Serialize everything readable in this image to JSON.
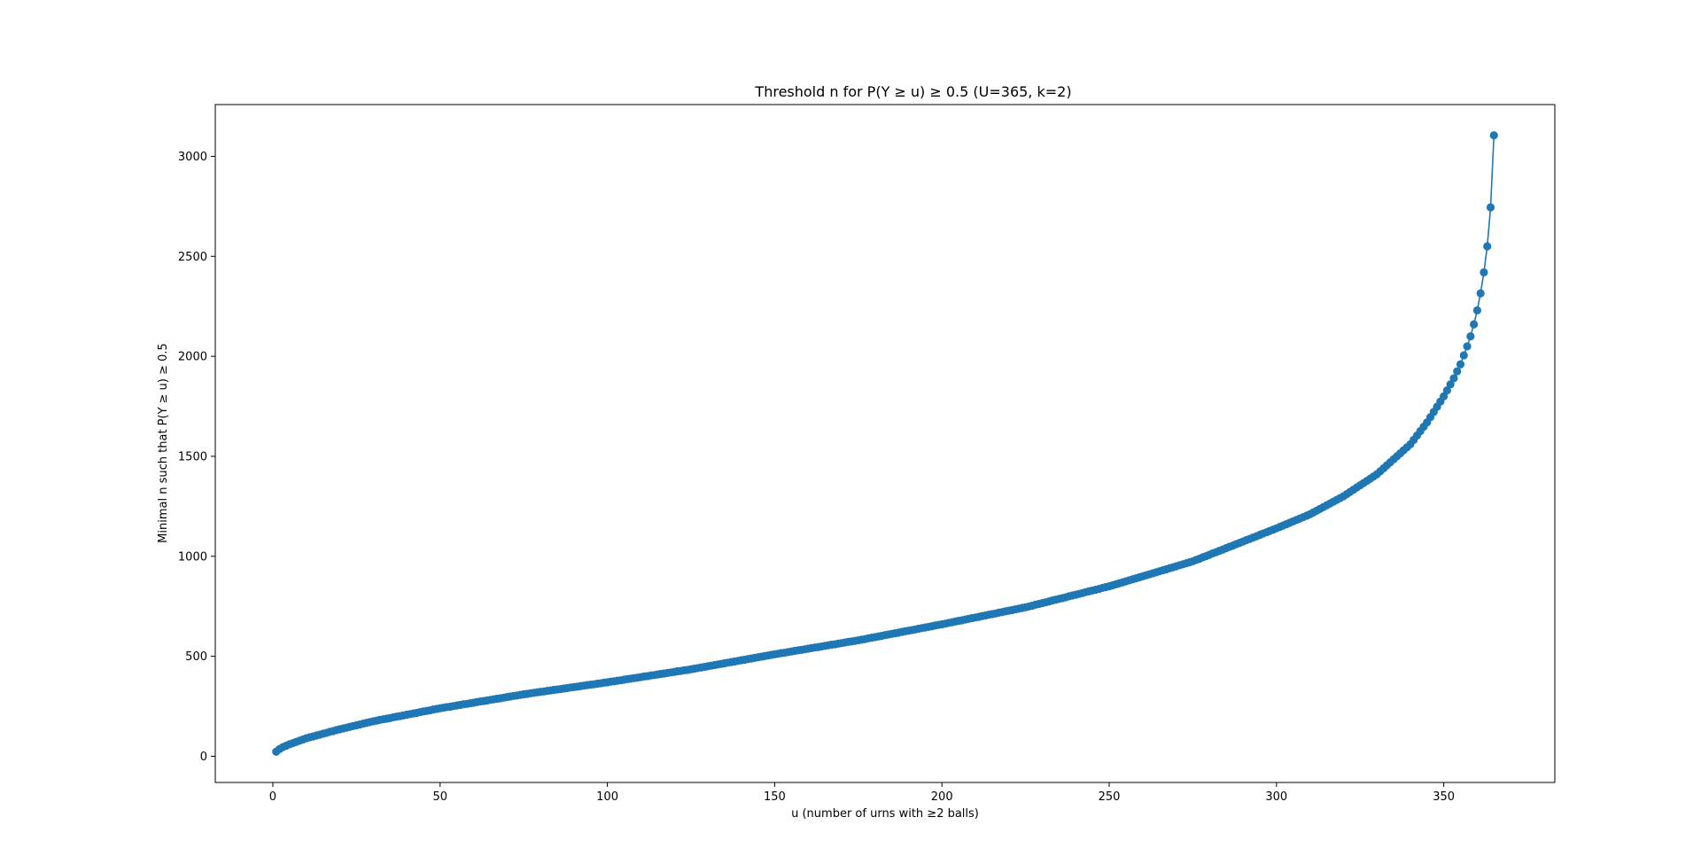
{
  "chart_data": {
    "type": "line",
    "title": "Threshold n for P(Y ≥ u) ≥ 0.5 (U=365, k=2)",
    "xlabel": "u (number of urns with ≥2 balls)",
    "ylabel": "Minimal n such that P(Y ≥ u) ≥ 0.5",
    "xlim": [
      -17.2,
      383.2
    ],
    "ylim": [
      -131,
      3259
    ],
    "xticks": [
      0,
      50,
      100,
      150,
      200,
      250,
      300,
      350
    ],
    "yticks": [
      0,
      500,
      1000,
      1500,
      2000,
      2500,
      3000
    ],
    "grid": false,
    "marker": "circle",
    "color": "#1f77b4",
    "series": [
      {
        "name": "",
        "anchors": [
          [
            1,
            23
          ],
          [
            2,
            36
          ],
          [
            3,
            46
          ],
          [
            5,
            60
          ],
          [
            10,
            90
          ],
          [
            20,
            135
          ],
          [
            30,
            175
          ],
          [
            50,
            240
          ],
          [
            75,
            310
          ],
          [
            100,
            370
          ],
          [
            125,
            435
          ],
          [
            150,
            510
          ],
          [
            175,
            580
          ],
          [
            200,
            660
          ],
          [
            225,
            745
          ],
          [
            250,
            850
          ],
          [
            275,
            975
          ],
          [
            300,
            1140
          ],
          [
            310,
            1210
          ],
          [
            320,
            1300
          ],
          [
            330,
            1410
          ],
          [
            340,
            1560
          ],
          [
            345,
            1670
          ],
          [
            350,
            1800
          ],
          [
            353,
            1890
          ],
          [
            355,
            1960
          ],
          [
            357,
            2050
          ],
          [
            358,
            2100
          ],
          [
            359,
            2160
          ],
          [
            360,
            2230
          ],
          [
            361,
            2315
          ],
          [
            362,
            2420
          ],
          [
            363,
            2550
          ],
          [
            364,
            2745
          ],
          [
            365,
            3105
          ]
        ]
      }
    ]
  }
}
